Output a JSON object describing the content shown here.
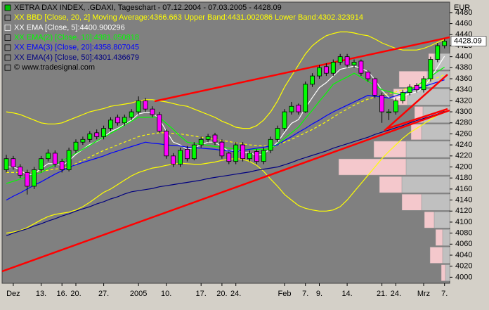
{
  "chart_data": {
    "type": "candlestick",
    "title": "XETRA DAX INDEX, .GDAXI, Tageschart - 07.12.2004 - 07.03.2005 - 4428.09",
    "copyright": "© www.tradesignal.com",
    "unit": "EUR",
    "last_price_label": "4428.09",
    "categories": [
      null,
      "Dez",
      null,
      null,
      null,
      "13.",
      null,
      null,
      "16.",
      null,
      "20.",
      null,
      null,
      null,
      "27.",
      null,
      null,
      null,
      null,
      "2005",
      null,
      null,
      null,
      "10.",
      null,
      null,
      null,
      null,
      "17.",
      null,
      null,
      "20.",
      null,
      "24.",
      null,
      null,
      null,
      null,
      null,
      null,
      "Feb",
      null,
      null,
      "7.",
      null,
      "9.",
      null,
      null,
      null,
      "14.",
      null,
      null,
      null,
      null,
      "21.",
      null,
      "24.",
      null,
      null,
      null,
      "Mrz",
      null,
      null,
      "7."
    ],
    "open": [
      4195,
      4215,
      4200,
      4190,
      4165,
      4195,
      4215,
      4225,
      4210,
      4195,
      4230,
      4245,
      4250,
      4262,
      4255,
      4270,
      4290,
      4280,
      4290,
      4300,
      4320,
      4305,
      4295,
      4265,
      4220,
      4205,
      4232,
      4215,
      4240,
      4250,
      4258,
      4245,
      4225,
      4210,
      4240,
      4215,
      4228,
      4210,
      4230,
      4250,
      4270,
      4300,
      4312,
      4300,
      4350,
      4365,
      4382,
      4370,
      4390,
      4400,
      4385,
      4392,
      4372,
      4360,
      4330,
      4298,
      4300,
      4320,
      4335,
      4348,
      4340,
      4360,
      4395,
      4420
    ],
    "high": [
      4222,
      4220,
      4205,
      4195,
      4200,
      4220,
      4232,
      4230,
      4215,
      4235,
      4250,
      4255,
      4265,
      4268,
      4275,
      4290,
      4295,
      4295,
      4305,
      4328,
      4325,
      4310,
      4300,
      4268,
      4225,
      4235,
      4238,
      4245,
      4255,
      4260,
      4262,
      4250,
      4228,
      4245,
      4245,
      4230,
      4232,
      4235,
      4255,
      4275,
      4305,
      4318,
      4315,
      4355,
      4370,
      4385,
      4388,
      4395,
      4405,
      4405,
      4395,
      4395,
      4375,
      4362,
      4335,
      4305,
      4325,
      4340,
      4350,
      4352,
      4365,
      4400,
      4425,
      4432
    ],
    "low": [
      4190,
      4195,
      4180,
      4150,
      4160,
      4190,
      4210,
      4200,
      4190,
      4192,
      4225,
      4240,
      4245,
      4250,
      4250,
      4265,
      4275,
      4275,
      4285,
      4295,
      4300,
      4290,
      4262,
      4215,
      4200,
      4200,
      4210,
      4212,
      4235,
      4245,
      4240,
      4215,
      4205,
      4205,
      4210,
      4210,
      4205,
      4205,
      4225,
      4245,
      4265,
      4295,
      4295,
      4298,
      4345,
      4360,
      4365,
      4365,
      4385,
      4380,
      4380,
      4365,
      4355,
      4325,
      4280,
      4285,
      4295,
      4315,
      4330,
      4335,
      4335,
      4355,
      4390,
      4415
    ],
    "close": [
      4215,
      4200,
      4185,
      4165,
      4195,
      4215,
      4225,
      4205,
      4195,
      4230,
      4245,
      4250,
      4260,
      4255,
      4270,
      4285,
      4280,
      4290,
      4300,
      4320,
      4305,
      4295,
      4265,
      4220,
      4205,
      4230,
      4215,
      4240,
      4250,
      4255,
      4245,
      4220,
      4210,
      4240,
      4215,
      4225,
      4210,
      4230,
      4250,
      4270,
      4300,
      4310,
      4300,
      4350,
      4365,
      4380,
      4370,
      4390,
      4400,
      4385,
      4390,
      4370,
      4360,
      4330,
      4300,
      4300,
      4320,
      4335,
      4345,
      4340,
      4360,
      4395,
      4420,
      4428.09
    ],
    "up_color": "#00ff00",
    "down_color": "#ff00ff",
    "series": [
      {
        "name": "XX BBD [Close, 20, 2] Moving Average:4366.663 Upper Band:4431.002086 Lower Band:4302.323914",
        "color": "#ffff00",
        "dashed": true,
        "values": [
          4190,
          4190,
          4190,
          4190,
          4191,
          4192,
          4194,
          4196,
          4198,
          4200,
          4206,
          4212,
          4218,
          4224,
          4230,
          4235,
          4240,
          4245,
          4250,
          4255,
          4258,
          4260,
          4262,
          4262,
          4261,
          4260,
          4258,
          4256,
          4254,
          4252,
          4250,
          4248,
          4246,
          4244,
          4242,
          4240,
          4239,
          4238,
          4238,
          4240,
          4245,
          4250,
          4256,
          4262,
          4268,
          4275,
          4282,
          4290,
          4298,
          4305,
          4312,
          4318,
          4323,
          4327,
          4330,
          4333,
          4336,
          4340,
          4344,
          4348,
          4353,
          4357,
          4362,
          4367
        ],
        "upper": [
          4300,
          4298,
          4295,
          4290,
          4285,
          4280,
          4278,
          4278,
          4280,
          4285,
          4290,
          4295,
          4300,
          4303,
          4306,
          4310,
          4312,
          4314,
          4316,
          4320,
          4322,
          4322,
          4320,
          4318,
          4315,
          4312,
          4310,
          4305,
          4300,
          4295,
          4290,
          4283,
          4278,
          4272,
          4270,
          4270,
          4275,
          4285,
          4300,
          4320,
          4345,
          4365,
          4385,
          4405,
          4420,
          4430,
          4438,
          4442,
          4445,
          4445,
          4443,
          4440,
          4438,
          4432,
          4425,
          4420,
          4415,
          4412,
          4412,
          4412,
          4415,
          4420,
          4426,
          4431
        ],
        "lower": [
          4080,
          4082,
          4085,
          4090,
          4097,
          4104,
          4110,
          4114,
          4116,
          4118,
          4122,
          4128,
          4136,
          4145,
          4154,
          4160,
          4168,
          4176,
          4184,
          4190,
          4194,
          4198,
          4200,
          4203,
          4205,
          4207,
          4206,
          4205,
          4205,
          4207,
          4209,
          4212,
          4214,
          4215,
          4214,
          4210,
          4203,
          4192,
          4178,
          4165,
          4150,
          4140,
          4130,
          4125,
          4122,
          4120,
          4120,
          4122,
          4128,
          4140,
          4155,
          4170,
          4185,
          4200,
          4215,
          4228,
          4240,
          4252,
          4262,
          4270,
          4278,
          4286,
          4294,
          4302
        ]
      },
      {
        "name": "XX EMA [Close, 5]:4400.900296",
        "color": "#ffffff",
        "values": [
          4200,
          4200,
          4195,
          4185,
          4188,
          4197,
          4206,
          4206,
          4202,
          4211,
          4223,
          4232,
          4241,
          4246,
          4254,
          4264,
          4270,
          4277,
          4285,
          4296,
          4299,
          4298,
          4287,
          4265,
          4245,
          4240,
          4232,
          4235,
          4240,
          4245,
          4245,
          4237,
          4228,
          4232,
          4226,
          4226,
          4221,
          4224,
          4233,
          4245,
          4263,
          4279,
          4286,
          4307,
          4326,
          4344,
          4353,
          4365,
          4377,
          4380,
          4383,
          4379,
          4373,
          4358,
          4339,
          4326,
          4324,
          4328,
          4333,
          4336,
          4344,
          4361,
          4381,
          4401
        ]
      },
      {
        "name": "XX EMA(2) [Close, 10]:4381.050818",
        "color": "#00ff00",
        "values": [
          4170,
          4174,
          4178,
          4182,
          4186,
          4190,
          4197,
          4204,
          4211,
          4218,
          4225,
          4232,
          4239,
          4247,
          4254,
          4261,
          4268,
          4276,
          4283,
          4290,
          4290,
          4290,
          4290,
          4279,
          4268,
          4256,
          4245,
          4243,
          4241,
          4239,
          4237,
          4236,
          4234,
          4232,
          4232,
          4232,
          4232,
          4232,
          4232,
          4242,
          4252,
          4262,
          4272,
          4288,
          4303,
          4319,
          4334,
          4350,
          4357,
          4363,
          4370,
          4363,
          4355,
          4348,
          4340,
          4337,
          4333,
          4330,
          4339,
          4347,
          4356,
          4364,
          4373,
          4381
        ]
      },
      {
        "name": "XX EMA(3) [Close, 20]:4358.807045",
        "color": "#0000ff",
        "values": [
          4140,
          4147,
          4153,
          4160,
          4167,
          4173,
          4180,
          4187,
          4193,
          4200,
          4204,
          4208,
          4212,
          4216,
          4220,
          4225,
          4229,
          4233,
          4237,
          4241,
          4245,
          4243,
          4242,
          4240,
          4239,
          4238,
          4236,
          4235,
          4234,
          4233,
          4232,
          4230,
          4229,
          4228,
          4230,
          4232,
          4234,
          4236,
          4238,
          4240,
          4248,
          4255,
          4263,
          4270,
          4278,
          4285,
          4293,
          4300,
          4306,
          4312,
          4318,
          4324,
          4330,
          4328,
          4327,
          4325,
          4329,
          4333,
          4338,
          4342,
          4346,
          4350,
          4354,
          4358
        ]
      },
      {
        "name": "XX EMA(4) [Close, 50]:4301.436679",
        "color": "#000080",
        "values": [
          4075,
          4080,
          4084,
          4088,
          4093,
          4097,
          4102,
          4106,
          4111,
          4115,
          4120,
          4124,
          4128,
          4133,
          4137,
          4142,
          4146,
          4151,
          4155,
          4157,
          4159,
          4161,
          4164,
          4166,
          4168,
          4170,
          4172,
          4174,
          4176,
          4179,
          4181,
          4183,
          4185,
          4187,
          4189,
          4191,
          4194,
          4196,
          4198,
          4200,
          4204,
          4208,
          4213,
          4217,
          4221,
          4225,
          4229,
          4234,
          4238,
          4242,
          4246,
          4250,
          4254,
          4259,
          4263,
          4267,
          4271,
          4275,
          4280,
          4284,
          4288,
          4292,
          4296,
          4301
        ]
      }
    ],
    "ylim": [
      3989,
      4499
    ],
    "yticks": [
      4000,
      4020,
      4040,
      4060,
      4080,
      4100,
      4120,
      4140,
      4160,
      4180,
      4200,
      4220,
      4240,
      4260,
      4280,
      4300,
      4320,
      4340,
      4360,
      4380,
      4400,
      4420,
      4440,
      4460,
      4480
    ],
    "profile": {
      "bins": [
        4407,
        4375,
        4343,
        4311,
        4279,
        4248,
        4216,
        4184,
        4152,
        4120,
        4088,
        4056,
        4024,
        3992
      ],
      "series": [
        {
          "color": "#f4c8cc",
          "values": [
            30,
            72,
            80,
            50,
            55,
            108,
            158,
            100,
            68,
            36,
            20,
            28,
            12
          ]
        },
        {
          "color": "#c0c0c0",
          "values": [
            22,
            32,
            60,
            38,
            40,
            62,
            62,
            68,
            40,
            22,
            10,
            10,
            6
          ]
        }
      ]
    }
  }
}
